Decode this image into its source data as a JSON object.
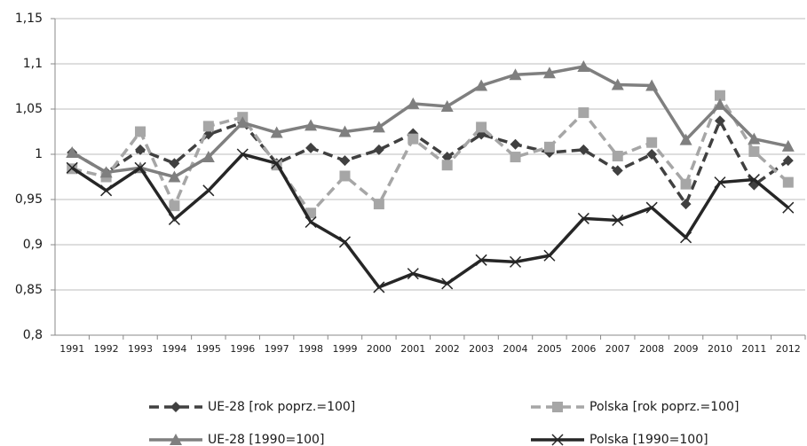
{
  "chart_data": {
    "type": "line",
    "categories": [
      "1991",
      "1992",
      "1993",
      "1994",
      "1995",
      "1996",
      "1997",
      "1998",
      "1999",
      "2000",
      "2001",
      "2002",
      "2003",
      "2004",
      "2005",
      "2006",
      "2007",
      "2008",
      "2009",
      "2010",
      "2011",
      "2012"
    ],
    "series": [
      {
        "name": "UE-28 [rok poprz.=100]",
        "color": "#404040",
        "dash": true,
        "marker": "diamond",
        "values": [
          1.002,
          0.98,
          1.005,
          0.99,
          1.022,
          1.035,
          0.99,
          1.007,
          0.993,
          1.005,
          1.023,
          0.997,
          1.022,
          1.011,
          1.002,
          1.005,
          0.982,
          1.0,
          0.945,
          1.037,
          0.966,
          0.993
        ]
      },
      {
        "name": "Polska [rok poprz.=100]",
        "color": "#a6a6a6",
        "dash": true,
        "marker": "square",
        "values": [
          0.984,
          0.975,
          1.025,
          0.943,
          1.031,
          1.041,
          0.988,
          0.935,
          0.976,
          0.945,
          1.017,
          0.988,
          1.03,
          0.997,
          1.008,
          1.046,
          0.998,
          1.013,
          0.967,
          1.065,
          1.003,
          0.969
        ]
      },
      {
        "name": "UE-28 [1990=100]",
        "color": "#7f7f7f",
        "dash": false,
        "marker": "triangle",
        "values": [
          1.002,
          0.98,
          0.985,
          0.975,
          0.997,
          1.035,
          1.024,
          1.032,
          1.025,
          1.03,
          1.056,
          1.053,
          1.076,
          1.088,
          1.09,
          1.097,
          1.077,
          1.076,
          1.016,
          1.055,
          1.017,
          1.009
        ]
      },
      {
        "name": "Polska [1990=100]",
        "color": "#262626",
        "dash": false,
        "marker": "x",
        "values": [
          0.985,
          0.96,
          0.985,
          0.928,
          0.96,
          1.0,
          0.99,
          0.925,
          0.903,
          0.853,
          0.868,
          0.857,
          0.883,
          0.881,
          0.888,
          0.929,
          0.927,
          0.941,
          0.908,
          0.969,
          0.972,
          0.941
        ]
      }
    ],
    "ylim": [
      0.8,
      1.15
    ],
    "yticks": [
      {
        "value": 0.8,
        "label": "0,8"
      },
      {
        "value": 0.85,
        "label": "0,85"
      },
      {
        "value": 0.9,
        "label": "0,9"
      },
      {
        "value": 0.95,
        "label": "0,95"
      },
      1,
      {
        "value": 1.05,
        "label": "1,05"
      },
      {
        "value": 1.1,
        "label": "1,1"
      },
      {
        "value": 1.15,
        "label": "1,15"
      }
    ],
    "grid": true,
    "legend": "bottom"
  }
}
